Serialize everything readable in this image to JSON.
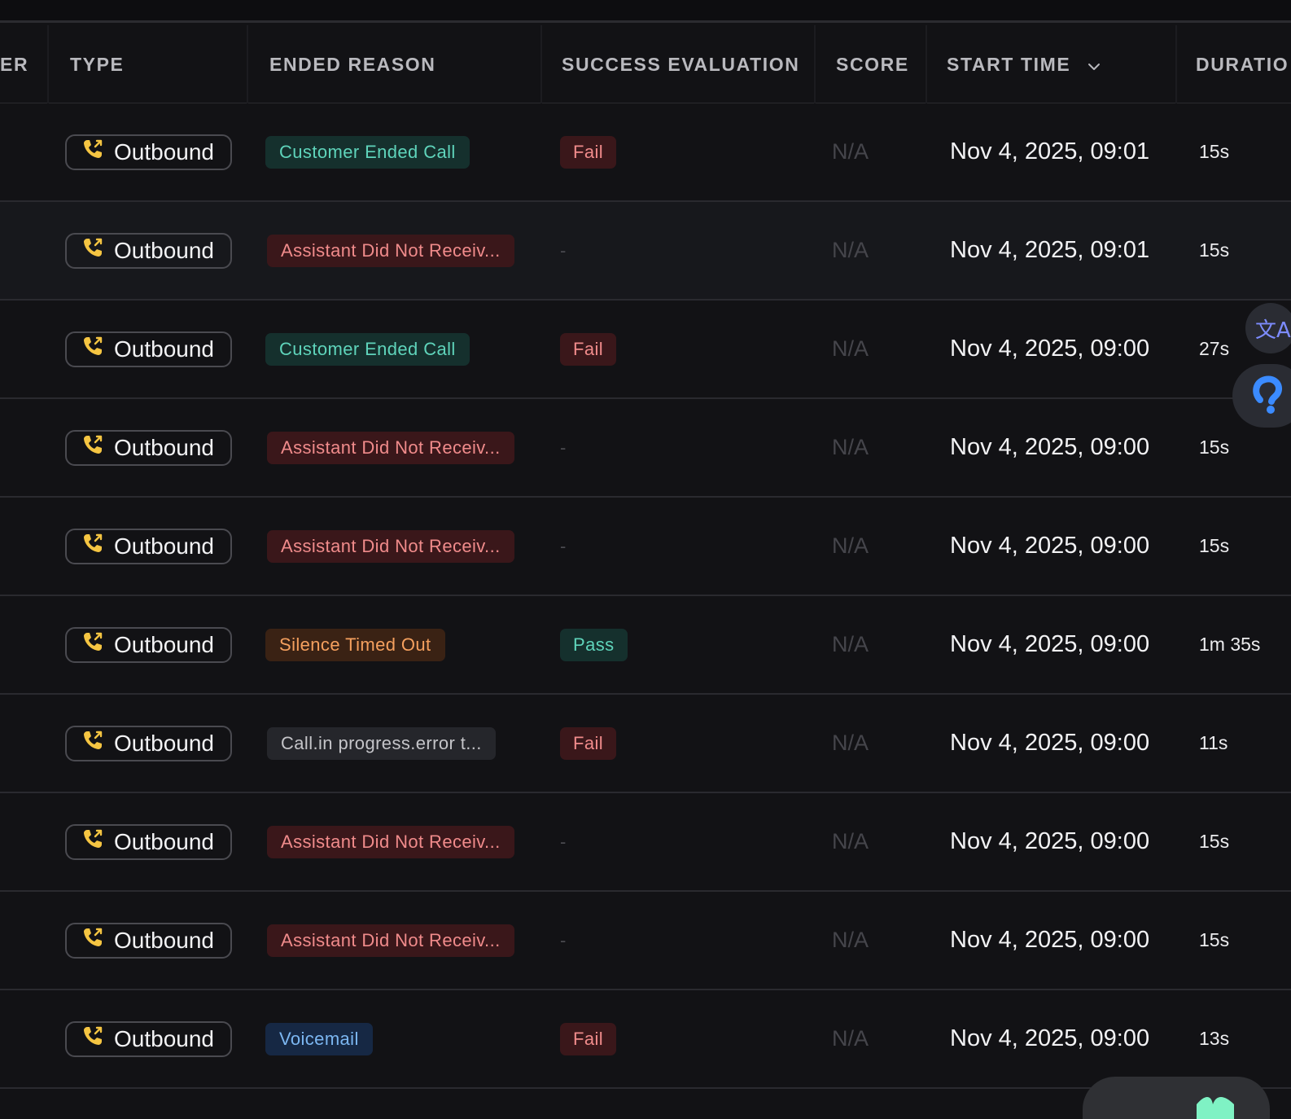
{
  "columns": {
    "number_partial": "ER",
    "type": "TYPE",
    "ended_reason": "ENDED REASON",
    "success_evaluation": "SUCCESS EVALUATION",
    "score": "SCORE",
    "start_time": "START TIME",
    "duration_partial": "DURATIO"
  },
  "rows": [
    {
      "type": "Outbound",
      "ended_reason": "Customer Ended Call",
      "reason_style": "teal",
      "evaluation": "Fail",
      "score": "N/A",
      "start_time": "Nov 4, 2025, 09:01",
      "duration": "15s"
    },
    {
      "type": "Outbound",
      "ended_reason": "Assistant Did Not Receiv...",
      "reason_style": "red",
      "evaluation": "-",
      "score": "N/A",
      "start_time": "Nov 4, 2025, 09:01",
      "duration": "15s"
    },
    {
      "type": "Outbound",
      "ended_reason": "Customer Ended Call",
      "reason_style": "teal",
      "evaluation": "Fail",
      "score": "N/A",
      "start_time": "Nov 4, 2025, 09:00",
      "duration": "27s"
    },
    {
      "type": "Outbound",
      "ended_reason": "Assistant Did Not Receiv...",
      "reason_style": "red",
      "evaluation": "-",
      "score": "N/A",
      "start_time": "Nov 4, 2025, 09:00",
      "duration": "15s"
    },
    {
      "type": "Outbound",
      "ended_reason": "Assistant Did Not Receiv...",
      "reason_style": "red",
      "evaluation": "-",
      "score": "N/A",
      "start_time": "Nov 4, 2025, 09:00",
      "duration": "15s"
    },
    {
      "type": "Outbound",
      "ended_reason": "Silence Timed Out",
      "reason_style": "orange",
      "evaluation": "Pass",
      "score": "N/A",
      "start_time": "Nov 4, 2025, 09:00",
      "duration": "1m 35s"
    },
    {
      "type": "Outbound",
      "ended_reason": "Call.in progress.error t...",
      "reason_style": "gray",
      "evaluation": "Fail",
      "score": "N/A",
      "start_time": "Nov 4, 2025, 09:00",
      "duration": "11s"
    },
    {
      "type": "Outbound",
      "ended_reason": "Assistant Did Not Receiv...",
      "reason_style": "red",
      "evaluation": "-",
      "score": "N/A",
      "start_time": "Nov 4, 2025, 09:00",
      "duration": "15s"
    },
    {
      "type": "Outbound",
      "ended_reason": "Assistant Did Not Receiv...",
      "reason_style": "red",
      "evaluation": "-",
      "score": "N/A",
      "start_time": "Nov 4, 2025, 09:00",
      "duration": "15s"
    },
    {
      "type": "Outbound",
      "ended_reason": "Voicemail",
      "reason_style": "blue",
      "evaluation": "Fail",
      "score": "N/A",
      "start_time": "Nov 4, 2025, 09:00",
      "duration": "13s"
    }
  ],
  "icons": {
    "type_icon": "phone-outgoing-icon",
    "sort_icon": "chevron-down-icon",
    "translate_icon": "translate-icon",
    "help_icon": "help-icon",
    "chat_icon": "chat-widget-icon"
  },
  "floating": {
    "translate_glyph": "文A"
  },
  "colors": {
    "background": "#121215",
    "phone_icon": "#f5c542",
    "teal": "#5fd4bb",
    "red": "#f08b8b",
    "orange": "#f5a05e",
    "blue": "#7cb7f2"
  }
}
